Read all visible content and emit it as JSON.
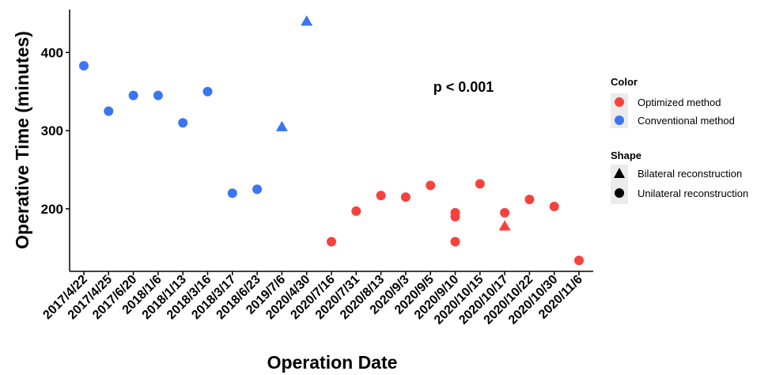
{
  "chart_data": {
    "type": "scatter",
    "xlabel": "Operation Date",
    "ylabel": "Operative Time (minutes)",
    "categories": [
      "2017/4/22",
      "2017/4/25",
      "2017/6/20",
      "2018/1/6",
      "2018/1/13",
      "2018/3/16",
      "2018/3/17",
      "2018/6/23",
      "2019/7/6",
      "2020/4/30",
      "2020/7/16",
      "2020/7/31",
      "2020/8/13",
      "2020/9/3",
      "2020/9/5",
      "2020/9/10",
      "2020/10/15",
      "2020/10/17",
      "2020/10/22",
      "2020/10/30",
      "2020/11/6"
    ],
    "ylim": [
      120,
      455
    ],
    "yticks": [
      200,
      300,
      400
    ],
    "grid": false,
    "annotation": "p < 0.001",
    "colors": {
      "optimized": "#F8413C",
      "conventional": "#3B75F2"
    },
    "legend": {
      "placement": "right",
      "color_title": "Color",
      "color_items": [
        {
          "label": "Optimized method",
          "key": "optimized"
        },
        {
          "label": "Conventional method",
          "key": "conventional"
        }
      ],
      "shape_title": "Shape",
      "shape_items": [
        {
          "label": "Bilateral reconstruction",
          "shape": "triangle"
        },
        {
          "label": "Unilateral reconstruction",
          "shape": "circle"
        }
      ]
    },
    "points": [
      {
        "x": "2017/4/22",
        "y": 383,
        "method": "conventional",
        "shape": "circle"
      },
      {
        "x": "2017/4/25",
        "y": 325,
        "method": "conventional",
        "shape": "circle"
      },
      {
        "x": "2017/6/20",
        "y": 345,
        "method": "conventional",
        "shape": "circle"
      },
      {
        "x": "2018/1/6",
        "y": 345,
        "method": "conventional",
        "shape": "circle"
      },
      {
        "x": "2018/1/13",
        "y": 310,
        "method": "conventional",
        "shape": "circle"
      },
      {
        "x": "2018/3/16",
        "y": 350,
        "method": "conventional",
        "shape": "circle"
      },
      {
        "x": "2018/3/17",
        "y": 220,
        "method": "conventional",
        "shape": "circle"
      },
      {
        "x": "2018/6/23",
        "y": 225,
        "method": "conventional",
        "shape": "circle"
      },
      {
        "x": "2019/7/6",
        "y": 305,
        "method": "conventional",
        "shape": "triangle"
      },
      {
        "x": "2020/4/30",
        "y": 440,
        "method": "conventional",
        "shape": "triangle"
      },
      {
        "x": "2020/7/16",
        "y": 158,
        "method": "optimized",
        "shape": "circle"
      },
      {
        "x": "2020/7/31",
        "y": 197,
        "method": "optimized",
        "shape": "circle"
      },
      {
        "x": "2020/8/13",
        "y": 217,
        "method": "optimized",
        "shape": "circle"
      },
      {
        "x": "2020/9/3",
        "y": 215,
        "method": "optimized",
        "shape": "circle"
      },
      {
        "x": "2020/9/5",
        "y": 230,
        "method": "optimized",
        "shape": "circle"
      },
      {
        "x": "2020/9/10",
        "y": 195,
        "method": "optimized",
        "shape": "circle"
      },
      {
        "x": "2020/9/10",
        "y": 190,
        "method": "optimized",
        "shape": "circle"
      },
      {
        "x": "2020/9/10",
        "y": 158,
        "method": "optimized",
        "shape": "circle"
      },
      {
        "x": "2020/10/15",
        "y": 232,
        "method": "optimized",
        "shape": "circle"
      },
      {
        "x": "2020/10/17",
        "y": 195,
        "method": "optimized",
        "shape": "circle"
      },
      {
        "x": "2020/10/17",
        "y": 178,
        "method": "optimized",
        "shape": "triangle"
      },
      {
        "x": "2020/10/22",
        "y": 212,
        "method": "optimized",
        "shape": "circle"
      },
      {
        "x": "2020/10/30",
        "y": 203,
        "method": "optimized",
        "shape": "circle"
      },
      {
        "x": "2020/11/6",
        "y": 134,
        "method": "optimized",
        "shape": "circle"
      }
    ]
  }
}
